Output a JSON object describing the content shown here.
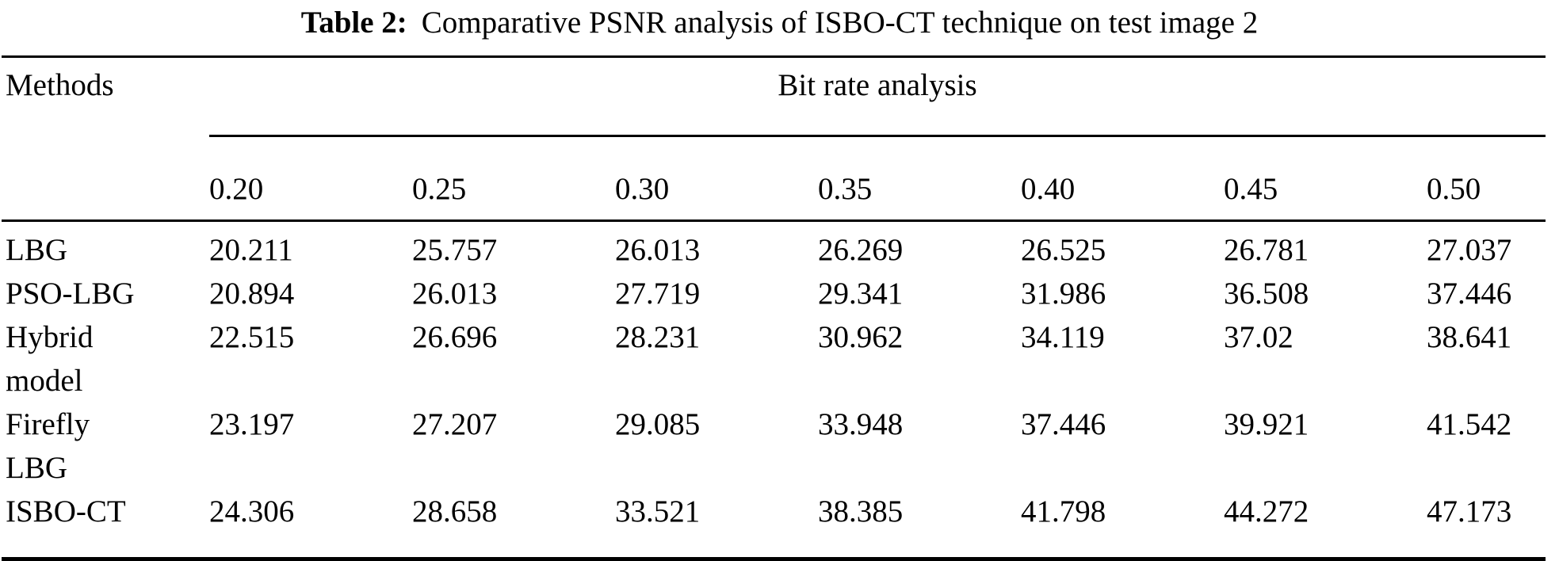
{
  "caption": {
    "label": "Table 2:",
    "text": "Comparative PSNR analysis of ISBO-CT technique on test image 2"
  },
  "table": {
    "methods_header": "Methods",
    "group_header": "Bit rate analysis",
    "bit_rates": [
      "0.20",
      "0.25",
      "0.30",
      "0.35",
      "0.40",
      "0.45",
      "0.50"
    ],
    "rows": [
      {
        "method": "LBG",
        "values": [
          "20.211",
          "25.757",
          "26.013",
          "26.269",
          "26.525",
          "26.781",
          "27.037"
        ]
      },
      {
        "method": "PSO-LBG",
        "values": [
          "20.894",
          "26.013",
          "27.719",
          "29.341",
          "31.986",
          "36.508",
          "37.446"
        ]
      },
      {
        "method": "Hybrid\nmodel",
        "values": [
          "22.515",
          "26.696",
          "28.231",
          "30.962",
          "34.119",
          "37.02",
          "38.641"
        ]
      },
      {
        "method": "Firefly\nLBG",
        "values": [
          "23.197",
          "27.207",
          "29.085",
          "33.948",
          "37.446",
          "39.921",
          "41.542"
        ]
      },
      {
        "method": "ISBO-CT",
        "values": [
          "24.306",
          "28.658",
          "33.521",
          "38.385",
          "41.798",
          "44.272",
          "47.173"
        ]
      }
    ]
  }
}
